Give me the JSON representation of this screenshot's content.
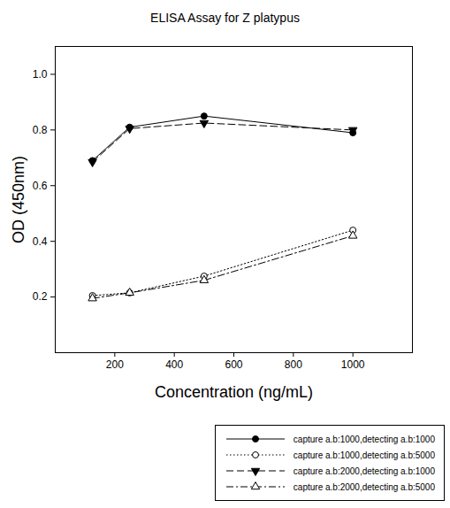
{
  "chart_data": {
    "type": "line",
    "title": "ELISA Assay for Z platypus",
    "x_label": "Concentration (ng/mL)",
    "y_label": "OD (450nm)",
    "x": [
      125,
      250,
      500,
      1000
    ],
    "series": [
      {
        "name": "capture a.b:1000,detecting a.b:1000",
        "color": "#000000",
        "marker": "circle",
        "line_style": "solid",
        "values": [
          0.69,
          0.81,
          0.85,
          0.79
        ]
      },
      {
        "name": "capture a.b:1000,detecting a.b:5000",
        "color": "#000000",
        "marker": "open circle",
        "line_style": "dotted",
        "values": [
          0.205,
          0.215,
          0.275,
          0.44
        ]
      },
      {
        "name": "capture a.b:2000,detecting a.b:1000",
        "color": "#000000",
        "marker": "triangle down",
        "line_style": "dashed",
        "values": [
          0.685,
          0.805,
          0.825,
          0.8
        ]
      },
      {
        "name": "capture a.b:2000,detecting a.b:5000",
        "color": "#000000",
        "marker": "open triangle",
        "line_style": "dashdot",
        "values": [
          0.195,
          0.215,
          0.26,
          0.42
        ]
      }
    ],
    "xlim": [
      0,
      1200
    ],
    "xticks": [
      200,
      400,
      600,
      800,
      1000
    ],
    "ylim": [
      0,
      1.1
    ],
    "yticks": [
      0.2,
      0.4,
      0.6,
      0.8,
      {
        "value": 1,
        "label": "1.0"
      }
    ],
    "grid": false,
    "legend": "bottom"
  }
}
